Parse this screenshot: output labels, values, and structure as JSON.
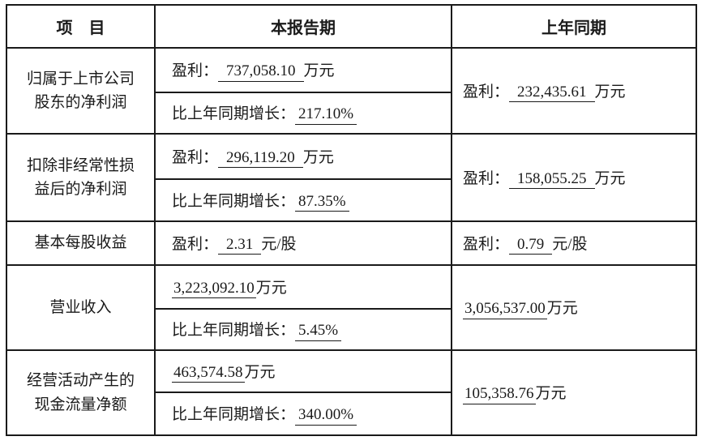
{
  "colors": {
    "text": "#1a1a1a",
    "border": "#1a1a1a",
    "background": "#ffffff"
  },
  "table": {
    "headers": {
      "item": "项　目",
      "current_period": "本报告期",
      "prior_period": "上年同期"
    },
    "labels": {
      "profit": "盈利：",
      "growth": "比上年同期增长："
    },
    "rows": {
      "net_profit": {
        "label_line1": "归属于上市公司",
        "label_line2": "股东的净利润",
        "current_value": "737,058.10",
        "current_unit": "万元",
        "growth_value": "217.10%",
        "prior_value": "232,435.61",
        "prior_unit": "万元"
      },
      "net_profit_deducted": {
        "label_line1": "扣除非经常性损",
        "label_line2": "益后的净利润",
        "current_value": "296,119.20",
        "current_unit": "万元",
        "growth_value": "87.35%",
        "prior_value": "158,055.25",
        "prior_unit": "万元"
      },
      "eps": {
        "label": "基本每股收益",
        "current_value": "2.31",
        "current_unit": "元/股",
        "prior_value": "0.79",
        "prior_unit": "元/股"
      },
      "revenue": {
        "label": "营业收入",
        "current_value": "3,223,092.10",
        "current_unit": "万元",
        "growth_value": "5.45%",
        "prior_value": "3,056,537.00",
        "prior_unit": "万元"
      },
      "operating_cash_flow": {
        "label_line1": "经营活动产生的",
        "label_line2": "现金流量净额",
        "current_value": "463,574.58",
        "current_unit": "万元",
        "growth_value": "340.00%",
        "prior_value": "105,358.76",
        "prior_unit": "万元"
      }
    }
  }
}
